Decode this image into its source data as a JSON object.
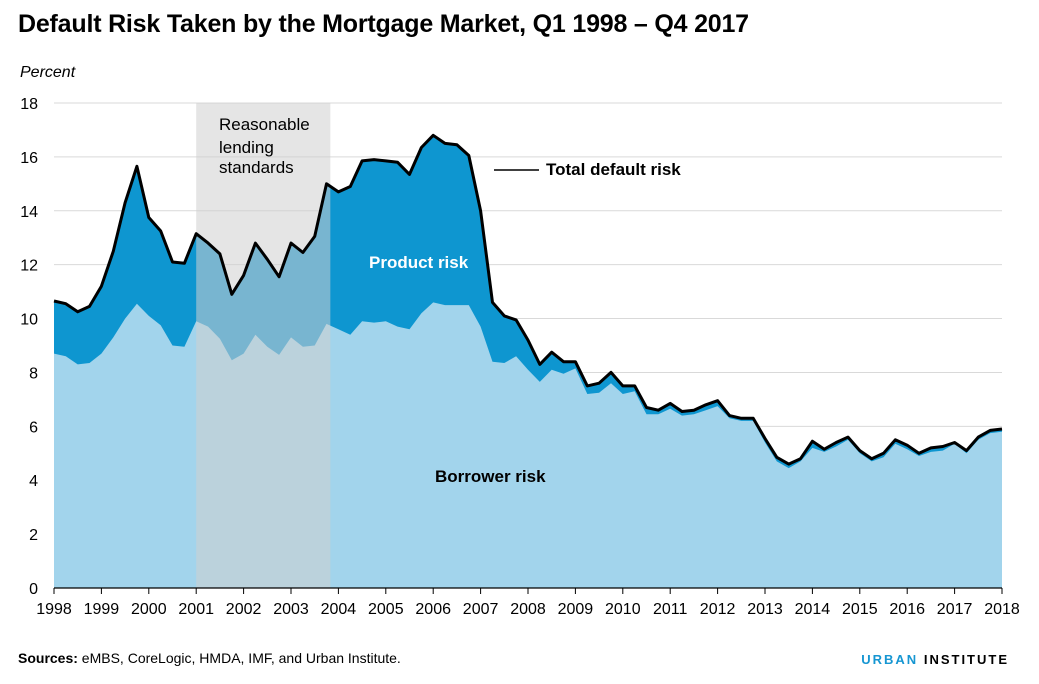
{
  "title": "Default Risk Taken by the Mortgage Market, Q1 1998 – Q4 2017",
  "footer": {
    "sources_label": "Sources:",
    "sources_text": " eMBS, CoreLogic, HMDA, IMF, and Urban Institute."
  },
  "brand": {
    "part1": "URBAN",
    "part2": "INSTITUTE"
  },
  "colors": {
    "borrower": "#a2d4ec",
    "product": "#0e96d0",
    "total_line": "#000000",
    "shade": "#cfcfcf"
  },
  "chart_data": {
    "type": "area",
    "ylabel": "Percent",
    "ylim": [
      0,
      18
    ],
    "yticks": [
      0,
      2,
      4,
      6,
      8,
      10,
      12,
      14,
      16,
      18
    ],
    "xlim": [
      1998,
      2018
    ],
    "xticks": [
      "1998",
      "1999",
      "2000",
      "2001",
      "2002",
      "2003",
      "2004",
      "2005",
      "2006",
      "2007",
      "2008",
      "2009",
      "2010",
      "2011",
      "2012",
      "2013",
      "2014",
      "2015",
      "2016",
      "2017",
      "2018"
    ],
    "grid": true,
    "shaded_region": {
      "x": [
        2001,
        2003.83
      ],
      "label": [
        "Reasonable",
        "lending",
        "standards"
      ]
    },
    "annotations": [
      "Total default risk",
      "Product risk",
      "Borrower risk"
    ],
    "x": [
      1998,
      1998.25,
      1998.5,
      1998.75,
      1999,
      1999.25,
      1999.5,
      1999.75,
      2000,
      2000.25,
      2000.5,
      2000.75,
      2001,
      2001.25,
      2001.5,
      2001.75,
      2002,
      2002.25,
      2002.5,
      2002.75,
      2003,
      2003.25,
      2003.5,
      2003.75,
      2004,
      2004.25,
      2004.5,
      2004.75,
      2005,
      2005.25,
      2005.5,
      2005.75,
      2006,
      2006.25,
      2006.5,
      2006.75,
      2007,
      2007.25,
      2007.5,
      2007.75,
      2008,
      2008.25,
      2008.5,
      2008.75,
      2009,
      2009.25,
      2009.5,
      2009.75,
      2010,
      2010.25,
      2010.5,
      2010.75,
      2011,
      2011.25,
      2011.5,
      2011.75,
      2012,
      2012.25,
      2012.5,
      2012.75,
      2013,
      2013.25,
      2013.5,
      2013.75,
      2014,
      2014.25,
      2014.5,
      2014.75,
      2015,
      2015.25,
      2015.5,
      2015.75,
      2016,
      2016.25,
      2016.5,
      2016.75,
      2017,
      2017.25,
      2017.5,
      2017.75,
      2018
    ],
    "series": [
      {
        "name": "Borrower risk",
        "values": [
          8.7,
          8.6,
          8.3,
          8.35,
          8.7,
          9.3,
          10.0,
          10.55,
          10.1,
          9.75,
          9.0,
          8.95,
          9.9,
          9.7,
          9.25,
          8.45,
          8.7,
          9.4,
          8.95,
          8.65,
          9.3,
          8.95,
          9.0,
          9.8,
          9.6,
          9.4,
          9.9,
          9.85,
          9.9,
          9.7,
          9.6,
          10.2,
          10.6,
          10.5,
          10.5,
          10.5,
          9.7,
          8.4,
          8.35,
          8.6,
          8.1,
          7.65,
          8.1,
          7.95,
          8.15,
          7.2,
          7.25,
          7.6,
          7.2,
          7.3,
          6.45,
          6.45,
          6.65,
          6.4,
          6.45,
          6.6,
          6.75,
          6.3,
          6.2,
          6.2,
          5.4,
          4.7,
          4.45,
          4.7,
          5.2,
          5.05,
          5.25,
          5.5,
          5.0,
          4.7,
          4.85,
          5.35,
          5.15,
          4.9,
          5.05,
          5.1,
          5.35,
          5.0,
          5.5,
          5.75,
          5.8
        ]
      },
      {
        "name": "Total default risk",
        "values": [
          10.65,
          10.55,
          10.25,
          10.45,
          11.2,
          12.5,
          14.3,
          15.65,
          13.75,
          13.25,
          12.1,
          12.05,
          13.15,
          12.8,
          12.4,
          10.9,
          11.6,
          12.8,
          12.2,
          11.55,
          12.8,
          12.45,
          13.05,
          15.0,
          14.7,
          14.9,
          15.85,
          15.9,
          15.85,
          15.8,
          15.35,
          16.35,
          16.8,
          16.5,
          16.45,
          16.05,
          14.0,
          10.6,
          10.1,
          9.95,
          9.2,
          8.3,
          8.75,
          8.4,
          8.4,
          7.5,
          7.6,
          8.0,
          7.5,
          7.5,
          6.7,
          6.6,
          6.85,
          6.55,
          6.6,
          6.8,
          6.95,
          6.4,
          6.3,
          6.3,
          5.55,
          4.85,
          4.6,
          4.8,
          5.45,
          5.15,
          5.4,
          5.6,
          5.1,
          4.8,
          5.0,
          5.5,
          5.3,
          5.0,
          5.2,
          5.25,
          5.4,
          5.1,
          5.6,
          5.85,
          5.9
        ]
      }
    ]
  }
}
